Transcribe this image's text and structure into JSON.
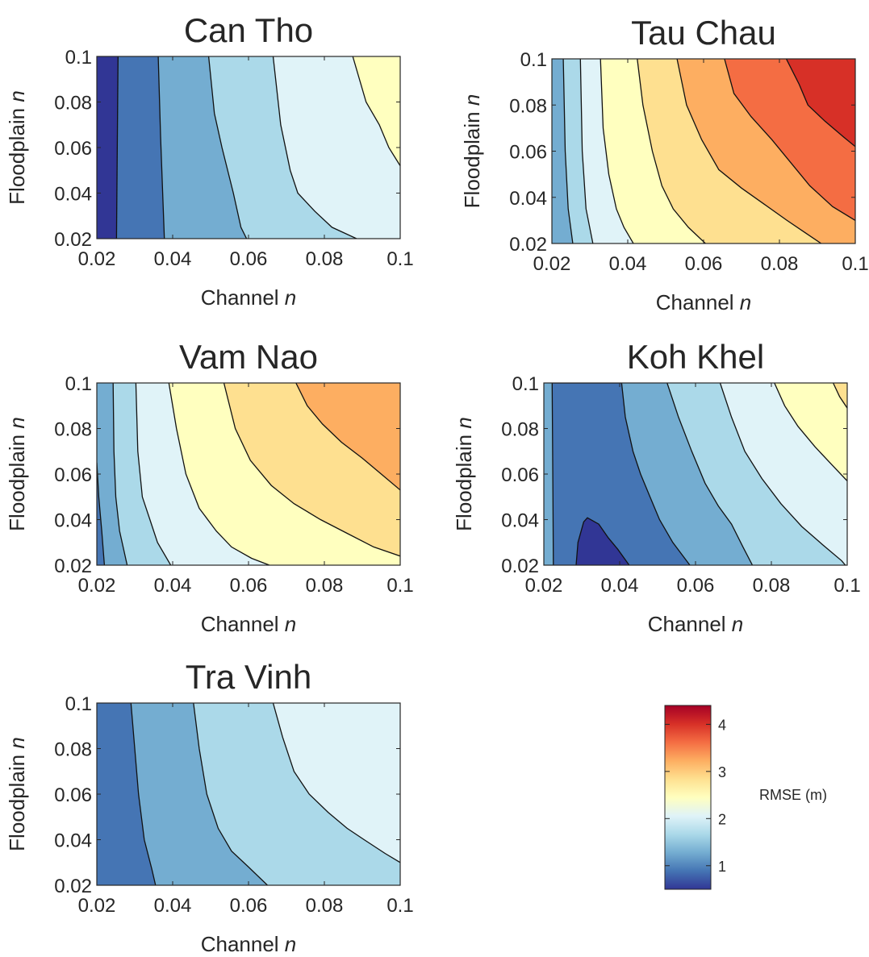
{
  "figure": {
    "colorbar_label": "RMSE (m)",
    "colorbar_ticks": [
      1,
      2,
      3,
      4
    ],
    "colorbar_range": [
      0.5,
      4.4
    ],
    "colormap": [
      "#313695",
      "#4575b4",
      "#74add1",
      "#abd9e9",
      "#e0f3f8",
      "#ffffbf",
      "#fee090",
      "#fdae61",
      "#f46d43",
      "#d73027",
      "#a50026"
    ]
  },
  "chart_data": [
    {
      "type": "contour",
      "title": "Can Tho",
      "xlabel": "Channel n",
      "ylabel": "Floodplain n",
      "xlim": [
        0.02,
        0.1
      ],
      "ylim": [
        0.02,
        0.1
      ],
      "xticks": [
        "0.02",
        "0.04",
        "0.06",
        "0.08",
        "0.1"
      ],
      "yticks": [
        "0.02",
        "0.04",
        "0.06",
        "0.08",
        "0.1"
      ],
      "bands": [
        {
          "color": "#313695",
          "rmse": 0.6,
          "boundary": null
        },
        {
          "color": "#4575b4",
          "rmse": 1.0,
          "boundary": [
            [
              0.0256,
              0.1
            ],
            [
              0.0252,
              0.02
            ]
          ]
        },
        {
          "color": "#74add1",
          "rmse": 1.5,
          "boundary": [
            [
              0.0362,
              0.1
            ],
            [
              0.0368,
              0.065
            ],
            [
              0.0378,
              0.02
            ]
          ]
        },
        {
          "color": "#abd9e9",
          "rmse": 1.9,
          "boundary": [
            [
              0.0495,
              0.1
            ],
            [
              0.051,
              0.075
            ],
            [
              0.053,
              0.06
            ],
            [
              0.056,
              0.04
            ],
            [
              0.058,
              0.025
            ],
            [
              0.0595,
              0.02
            ]
          ]
        },
        {
          "color": "#e0f3f8",
          "rmse": 2.3,
          "boundary": [
            [
              0.0665,
              0.1
            ],
            [
              0.0685,
              0.07
            ],
            [
              0.071,
              0.05
            ],
            [
              0.073,
              0.04
            ],
            [
              0.0775,
              0.032
            ],
            [
              0.082,
              0.025
            ],
            [
              0.0885,
              0.02
            ]
          ]
        },
        {
          "color": "#ffffbf",
          "rmse": 2.7,
          "boundary": [
            [
              0.0875,
              0.1
            ],
            [
              0.091,
              0.08
            ],
            [
              0.0945,
              0.07
            ],
            [
              0.097,
              0.06
            ],
            [
              0.1,
              0.052
            ]
          ]
        }
      ]
    },
    {
      "type": "contour",
      "title": "Tau Chau",
      "xlabel": "Channel n",
      "ylabel": "Floodplain n",
      "xlim": [
        0.02,
        0.1
      ],
      "ylim": [
        0.02,
        0.1
      ],
      "xticks": [
        "0.02",
        "0.04",
        "0.06",
        "0.08",
        "0.1"
      ],
      "yticks": [
        "0.02",
        "0.04",
        "0.06",
        "0.08",
        "0.1"
      ],
      "bands": [
        {
          "color": "#74add1",
          "rmse": 1.4,
          "boundary": null
        },
        {
          "color": "#abd9e9",
          "rmse": 1.9,
          "boundary": [
            [
              0.023,
              0.1
            ],
            [
              0.0235,
              0.06
            ],
            [
              0.0243,
              0.035
            ],
            [
              0.0255,
              0.02
            ]
          ]
        },
        {
          "color": "#e0f3f8",
          "rmse": 2.3,
          "boundary": [
            [
              0.0275,
              0.1
            ],
            [
              0.028,
              0.06
            ],
            [
              0.029,
              0.035
            ],
            [
              0.0308,
              0.02
            ]
          ]
        },
        {
          "color": "#ffffbf",
          "rmse": 2.7,
          "boundary": [
            [
              0.0328,
              0.1
            ],
            [
              0.0335,
              0.07
            ],
            [
              0.035,
              0.05
            ],
            [
              0.037,
              0.035
            ],
            [
              0.039,
              0.027
            ],
            [
              0.0415,
              0.02
            ]
          ]
        },
        {
          "color": "#fee090",
          "rmse": 3.1,
          "boundary": [
            [
              0.0425,
              0.1
            ],
            [
              0.044,
              0.08
            ],
            [
              0.0465,
              0.06
            ],
            [
              0.049,
              0.045
            ],
            [
              0.052,
              0.035
            ],
            [
              0.056,
              0.027
            ],
            [
              0.0605,
              0.02
            ]
          ]
        },
        {
          "color": "#fdae61",
          "rmse": 3.5,
          "boundary": [
            [
              0.053,
              0.1
            ],
            [
              0.0555,
              0.08
            ],
            [
              0.0595,
              0.065
            ],
            [
              0.064,
              0.052
            ],
            [
              0.07,
              0.044
            ],
            [
              0.076,
              0.037
            ],
            [
              0.082,
              0.03
            ],
            [
              0.0865,
              0.025
            ],
            [
              0.091,
              0.02
            ]
          ]
        },
        {
          "color": "#f46d43",
          "rmse": 3.9,
          "boundary": [
            [
              0.0655,
              0.1
            ],
            [
              0.068,
              0.085
            ],
            [
              0.0725,
              0.075
            ],
            [
              0.078,
              0.065
            ],
            [
              0.083,
              0.055
            ],
            [
              0.088,
              0.045
            ],
            [
              0.094,
              0.036
            ],
            [
              0.1,
              0.03
            ]
          ]
        },
        {
          "color": "#d73027",
          "rmse": 4.2,
          "boundary": [
            [
              0.0818,
              0.1
            ],
            [
              0.0852,
              0.089
            ],
            [
              0.0875,
              0.08
            ],
            [
              0.092,
              0.073
            ],
            [
              0.097,
              0.066
            ],
            [
              0.1,
              0.062
            ]
          ]
        }
      ]
    },
    {
      "type": "contour",
      "title": "Vam Nao",
      "xlabel": "Channel n",
      "ylabel": "Floodplain n",
      "xlim": [
        0.02,
        0.1
      ],
      "ylim": [
        0.02,
        0.1
      ],
      "xticks": [
        "0.02",
        "0.04",
        "0.06",
        "0.08",
        "0.1"
      ],
      "yticks": [
        "0.02",
        "0.04",
        "0.06",
        "0.08",
        "0.1"
      ],
      "bands": [
        {
          "color": "#4575b4",
          "rmse": 1.1,
          "boundary": null
        },
        {
          "color": "#74add1",
          "rmse": 1.5,
          "boundary": [
            [
              0.02,
              0.065
            ],
            [
              0.0205,
              0.05
            ],
            [
              0.0213,
              0.035
            ],
            [
              0.022,
              0.02
            ]
          ]
        },
        {
          "color": "#abd9e9",
          "rmse": 1.9,
          "boundary": [
            [
              0.0243,
              0.1
            ],
            [
              0.0245,
              0.07
            ],
            [
              0.025,
              0.05
            ],
            [
              0.026,
              0.035
            ],
            [
              0.028,
              0.02
            ]
          ]
        },
        {
          "color": "#e0f3f8",
          "rmse": 2.3,
          "boundary": [
            [
              0.0303,
              0.1
            ],
            [
              0.0308,
              0.07
            ],
            [
              0.032,
              0.05
            ],
            [
              0.034,
              0.04
            ],
            [
              0.036,
              0.03
            ],
            [
              0.0395,
              0.02
            ]
          ]
        },
        {
          "color": "#ffffbf",
          "rmse": 2.7,
          "boundary": [
            [
              0.039,
              0.1
            ],
            [
              0.041,
              0.08
            ],
            [
              0.0435,
              0.06
            ],
            [
              0.047,
              0.045
            ],
            [
              0.0515,
              0.035
            ],
            [
              0.0555,
              0.028
            ],
            [
              0.0608,
              0.023
            ],
            [
              0.0655,
              0.02
            ]
          ]
        },
        {
          "color": "#fee090",
          "rmse": 3.1,
          "boundary": [
            [
              0.0535,
              0.1
            ],
            [
              0.0565,
              0.08
            ],
            [
              0.0605,
              0.066
            ],
            [
              0.066,
              0.055
            ],
            [
              0.072,
              0.047
            ],
            [
              0.079,
              0.04
            ],
            [
              0.086,
              0.034
            ],
            [
              0.093,
              0.028
            ],
            [
              0.1,
              0.024
            ]
          ]
        },
        {
          "color": "#fdae61",
          "rmse": 3.5,
          "boundary": [
            [
              0.0725,
              0.1
            ],
            [
              0.0755,
              0.09
            ],
            [
              0.0795,
              0.082
            ],
            [
              0.0845,
              0.074
            ],
            [
              0.09,
              0.067
            ],
            [
              0.095,
              0.06
            ],
            [
              0.1,
              0.053
            ]
          ]
        }
      ]
    },
    {
      "type": "contour",
      "title": "Koh Khel",
      "xlabel": "Channel n",
      "ylabel": "Floodplain n",
      "xlim": [
        0.02,
        0.1
      ],
      "ylim": [
        0.02,
        0.1
      ],
      "xticks": [
        "0.02",
        "0.04",
        "0.06",
        "0.08",
        "0.1"
      ],
      "yticks": [
        "0.02",
        "0.04",
        "0.06",
        "0.08",
        "0.1"
      ],
      "bands": [
        {
          "color": "#74add1",
          "rmse": 1.4,
          "boundary": null
        },
        {
          "color": "#4575b4",
          "rmse": 1.0,
          "boundary": [
            [
              0.0225,
              0.02
            ],
            [
              0.0224,
              0.05
            ],
            [
              0.0222,
              0.1
            ],
            [
              0.0405,
              0.1
            ],
            [
              0.0415,
              0.085
            ],
            [
              0.0435,
              0.07
            ],
            [
              0.0455,
              0.06
            ],
            [
              0.048,
              0.05
            ],
            [
              0.0505,
              0.04
            ],
            [
              0.054,
              0.03
            ],
            [
              0.0585,
              0.02
            ]
          ]
        },
        {
          "color": "#313695",
          "rmse": 0.7,
          "boundary": [
            [
              0.0285,
              0.02
            ],
            [
              0.029,
              0.03
            ],
            [
              0.0305,
              0.039
            ],
            [
              0.0315,
              0.0408
            ],
            [
              0.0345,
              0.038
            ],
            [
              0.037,
              0.032
            ],
            [
              0.0395,
              0.027
            ],
            [
              0.0425,
              0.02
            ]
          ]
        },
        {
          "color": "#abd9e9",
          "rmse": 1.9,
          "boundary": [
            [
              0.0525,
              0.1
            ],
            [
              0.0555,
              0.085
            ],
            [
              0.059,
              0.07
            ],
            [
              0.0625,
              0.056
            ],
            [
              0.066,
              0.046
            ],
            [
              0.0695,
              0.038
            ],
            [
              0.0725,
              0.028
            ],
            [
              0.075,
              0.02
            ]
          ]
        },
        {
          "color": "#e0f3f8",
          "rmse": 2.3,
          "boundary": [
            [
              0.0665,
              0.1
            ],
            [
              0.0695,
              0.085
            ],
            [
              0.073,
              0.07
            ],
            [
              0.0775,
              0.058
            ],
            [
              0.0825,
              0.047
            ],
            [
              0.088,
              0.037
            ],
            [
              0.0935,
              0.029
            ],
            [
              0.0985,
              0.022
            ],
            [
              0.0995,
              0.02
            ]
          ]
        },
        {
          "color": "#ffffbf",
          "rmse": 2.7,
          "boundary": [
            [
              0.0808,
              0.1
            ],
            [
              0.0835,
              0.09
            ],
            [
              0.087,
              0.081
            ],
            [
              0.0915,
              0.072
            ],
            [
              0.096,
              0.064
            ],
            [
              0.1,
              0.057
            ]
          ]
        },
        {
          "color": "#fee090",
          "rmse": 3.0,
          "boundary": [
            [
              0.0963,
              0.1
            ],
            [
              0.098,
              0.094
            ],
            [
              0.1,
              0.089
            ]
          ]
        }
      ]
    },
    {
      "type": "contour",
      "title": "Tra Vinh",
      "xlabel": "Channel n",
      "ylabel": "Floodplain n",
      "xlim": [
        0.02,
        0.1
      ],
      "ylim": [
        0.02,
        0.1
      ],
      "xticks": [
        "0.02",
        "0.04",
        "0.06",
        "0.08",
        "0.1"
      ],
      "yticks": [
        "0.02",
        "0.04",
        "0.06",
        "0.08",
        "0.1"
      ],
      "bands": [
        {
          "color": "#4575b4",
          "rmse": 1.1,
          "boundary": null
        },
        {
          "color": "#74add1",
          "rmse": 1.5,
          "boundary": [
            [
              0.029,
              0.1
            ],
            [
              0.03,
              0.08
            ],
            [
              0.031,
              0.06
            ],
            [
              0.0325,
              0.04
            ],
            [
              0.0345,
              0.027
            ],
            [
              0.0355,
              0.02
            ]
          ]
        },
        {
          "color": "#abd9e9",
          "rmse": 1.9,
          "boundary": [
            [
              0.0455,
              0.1
            ],
            [
              0.047,
              0.08
            ],
            [
              0.049,
              0.06
            ],
            [
              0.052,
              0.045
            ],
            [
              0.0555,
              0.035
            ],
            [
              0.06,
              0.028
            ],
            [
              0.065,
              0.02
            ]
          ]
        },
        {
          "color": "#e0f3f8",
          "rmse": 2.3,
          "boundary": [
            [
              0.0665,
              0.1
            ],
            [
              0.069,
              0.085
            ],
            [
              0.072,
              0.07
            ],
            [
              0.076,
              0.06
            ],
            [
              0.081,
              0.052
            ],
            [
              0.086,
              0.045
            ],
            [
              0.0905,
              0.04
            ],
            [
              0.096,
              0.034
            ],
            [
              0.1,
              0.03
            ]
          ]
        }
      ]
    }
  ]
}
